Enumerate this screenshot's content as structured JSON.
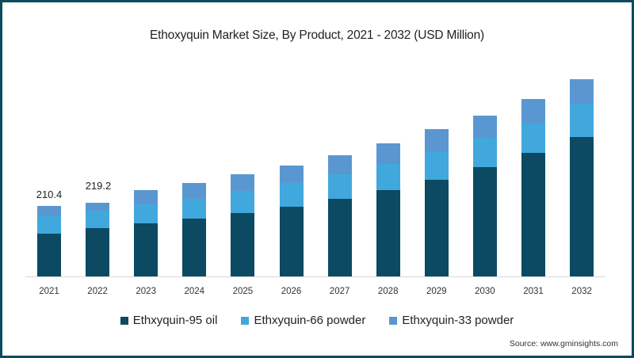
{
  "chart_data": {
    "type": "bar",
    "stacked": true,
    "title": "Ethoxyquin Market Size, By Product, 2021 - 2032 (USD Million)",
    "xlabel": "",
    "ylabel": "USD Million",
    "categories": [
      "2021",
      "2022",
      "2023",
      "2024",
      "2025",
      "2026",
      "2027",
      "2028",
      "2029",
      "2030",
      "2031",
      "2032"
    ],
    "series": [
      {
        "name": "Ethxyquin-95 oil",
        "color": "#0b4a62",
        "values": [
          127.7,
          144.2,
          158.4,
          172.6,
          189.1,
          208.0,
          231.7,
          257.6,
          288.4,
          326.2,
          368.8,
          416.1
        ]
      },
      {
        "name": "Ethxyquin-66 powder",
        "color": "#41a8dd",
        "values": [
          52.0,
          52.0,
          56.7,
          59.1,
          66.2,
          70.9,
          73.3,
          78.0,
          82.7,
          87.5,
          87.5,
          99.3
        ]
      },
      {
        "name": "Ethxyquin-33 powder",
        "color": "#5a97d1",
        "values": [
          30.7,
          23.0,
          42.5,
          47.3,
          49.6,
          52.0,
          56.7,
          61.5,
          68.6,
          66.2,
          73.3,
          73.3
        ]
      }
    ],
    "data_labels": {
      "2021": "210.4",
      "2022": "219.2"
    },
    "ylim": [
      0,
      620
    ],
    "grid": false,
    "legend_position": "bottom"
  },
  "title": "Ethoxyquin Market Size, By Product, 2021 - 2032 (USD Million)",
  "labels": {
    "v2021": "210.4",
    "v2022": "219.2"
  },
  "legend": [
    "Ethxyquin-95 oil",
    "Ethxyquin-66 powder",
    "Ethxyquin-33 powder"
  ],
  "source": "Source: www.gminsights.com"
}
